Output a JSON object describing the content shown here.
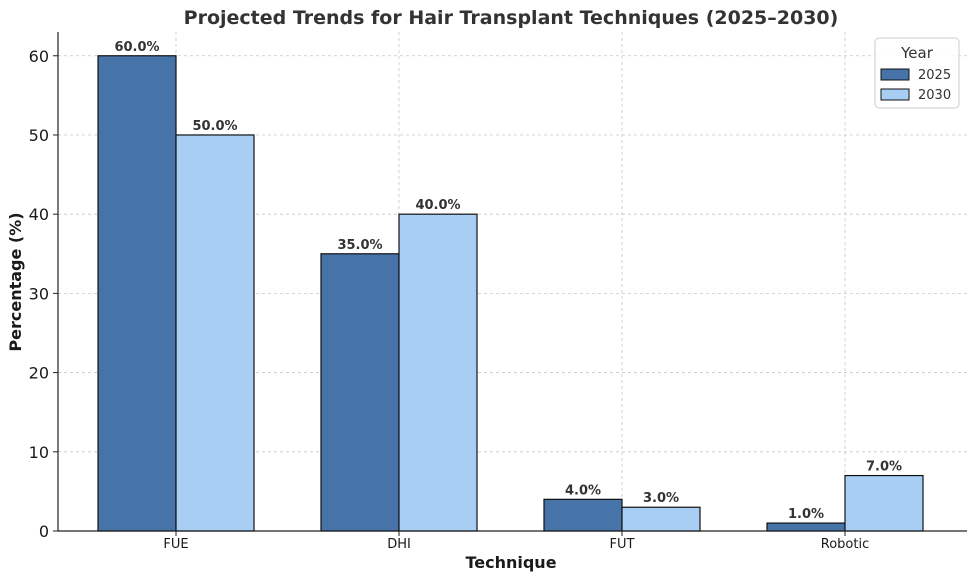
{
  "chart_data": {
    "type": "bar",
    "title": "Projected Trends for Hair Transplant Techniques (2025–2030)",
    "xlabel": "Technique",
    "ylabel": "Percentage (%)",
    "categories": [
      "FUE",
      "DHI",
      "FUT",
      "Robotic"
    ],
    "series": [
      {
        "name": "2025",
        "values": [
          60.0,
          35.0,
          4.0,
          1.0
        ],
        "labels": [
          "60.0%",
          "35.0%",
          "4.0%",
          "1.0%"
        ],
        "color": "#4673a8"
      },
      {
        "name": "2030",
        "values": [
          50.0,
          40.0,
          3.0,
          7.0
        ],
        "labels": [
          "50.0%",
          "40.0%",
          "3.0%",
          "7.0%"
        ],
        "color": "#a8cef4"
      }
    ],
    "ylim": [
      0,
      63
    ],
    "yticks": [
      0,
      10,
      20,
      30,
      40,
      50,
      60
    ],
    "ytick_labels": [
      "0",
      "10",
      "20",
      "30",
      "40",
      "50",
      "60"
    ],
    "grid": true,
    "legend": {
      "title": "Year",
      "placement": "top-right"
    }
  }
}
